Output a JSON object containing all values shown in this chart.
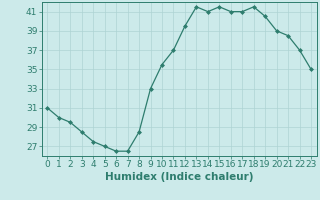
{
  "x": [
    0,
    1,
    2,
    3,
    4,
    5,
    6,
    7,
    8,
    9,
    10,
    11,
    12,
    13,
    14,
    15,
    16,
    17,
    18,
    19,
    20,
    21,
    22,
    23
  ],
  "y": [
    31,
    30,
    29.5,
    28.5,
    27.5,
    27,
    26.5,
    26.5,
    28.5,
    33,
    35.5,
    37,
    39.5,
    41.5,
    41,
    41.5,
    41,
    41,
    41.5,
    40.5,
    39,
    38.5,
    37,
    35
  ],
  "line_color": "#2e7d6e",
  "marker_color": "#2e7d6e",
  "bg_color": "#cceaea",
  "grid_color": "#aed4d4",
  "xlabel": "Humidex (Indice chaleur)",
  "xlim": [
    -0.5,
    23.5
  ],
  "ylim": [
    26.0,
    42.0
  ],
  "yticks": [
    27,
    29,
    31,
    33,
    35,
    37,
    39,
    41
  ],
  "xticks": [
    0,
    1,
    2,
    3,
    4,
    5,
    6,
    7,
    8,
    9,
    10,
    11,
    12,
    13,
    14,
    15,
    16,
    17,
    18,
    19,
    20,
    21,
    22,
    23
  ],
  "tick_label_fontsize": 6.5,
  "xlabel_fontsize": 7.5
}
